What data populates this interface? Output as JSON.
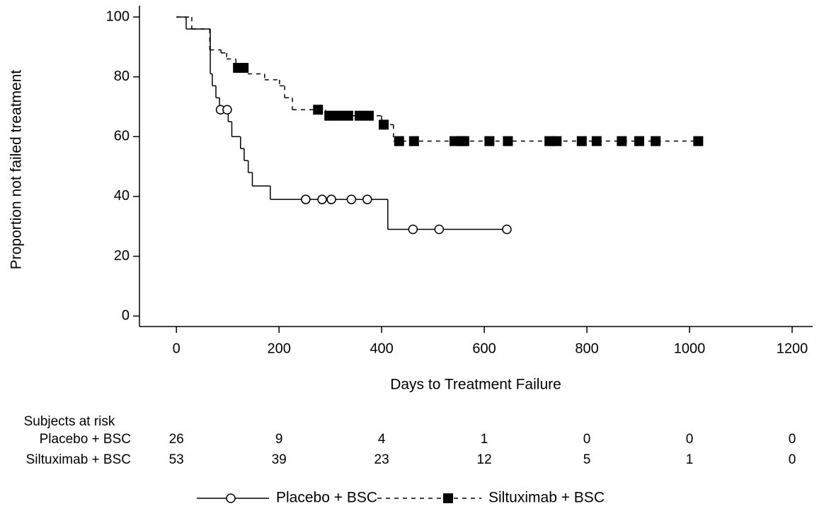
{
  "chart_data": {
    "type": "km",
    "xlabel": "Days to Treatment Failure",
    "ylabel": "Proportion not failed treatment",
    "xlim": [
      -72,
      1240
    ],
    "ylim": [
      -3.5,
      103.8
    ],
    "xticks": [
      0,
      200,
      400,
      600,
      800,
      1000,
      1200
    ],
    "yticks": [
      0,
      20,
      40,
      60,
      80,
      100
    ],
    "series": [
      {
        "name": "Placebo + BSC",
        "color": "#000000",
        "dash": false,
        "marker": "circle",
        "x": [
          0,
          19,
          66,
          70,
          77,
          84,
          101,
          108,
          125,
          132,
          140,
          148,
          183,
          412,
          650
        ],
        "values": [
          100,
          96,
          81,
          77,
          73,
          69,
          65,
          60,
          56,
          52,
          48,
          43.5,
          39,
          29,
          29
        ],
        "censor_x": [
          86,
          99,
          252,
          284,
          302,
          341,
          372,
          461,
          512,
          644
        ],
        "censor_values": [
          69,
          69,
          39,
          39,
          39,
          39,
          39,
          29,
          29,
          29
        ]
      },
      {
        "name": "Siltuximab + BSC",
        "color": "#000000",
        "dash": true,
        "marker": "square",
        "x": [
          0,
          30,
          65,
          87,
          98,
          116,
          139,
          172,
          201,
          211,
          226,
          291,
          400,
          423,
          1017
        ],
        "values": [
          100,
          96,
          89,
          88,
          86,
          83,
          81,
          79,
          77,
          73,
          69,
          67,
          64,
          58.5,
          58.5
        ],
        "censor_x": [
          120,
          131,
          276,
          298,
          316,
          335,
          357,
          375,
          404,
          434,
          463,
          542,
          556,
          561,
          610,
          646,
          727,
          741,
          790,
          819,
          868,
          902,
          934,
          1017
        ],
        "censor_values": [
          83,
          83,
          69,
          67,
          67,
          67,
          67,
          67,
          64,
          58.5,
          58.5,
          58.5,
          58.5,
          58.5,
          58.5,
          58.5,
          58.5,
          58.5,
          58.5,
          58.5,
          58.5,
          58.5,
          58.5,
          58.5
        ]
      }
    ],
    "risk_table": {
      "title": "Subjects at risk",
      "rows": [
        {
          "label": "Placebo + BSC",
          "counts": [
            26,
            9,
            4,
            1,
            0,
            0,
            0
          ]
        },
        {
          "label": "Siltuximab + BSC",
          "counts": [
            53,
            39,
            23,
            12,
            5,
            1,
            0
          ]
        }
      ]
    }
  }
}
